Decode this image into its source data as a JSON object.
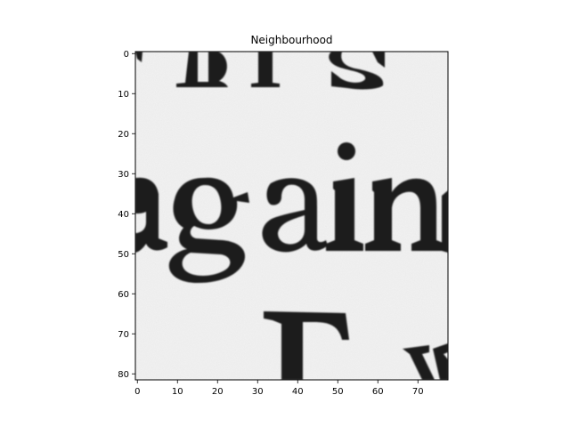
{
  "chart_data": {
    "type": "heatmap",
    "title": "Neighbourhood",
    "xlabel": "",
    "ylabel": "",
    "content": "grayscale scanned-text crop",
    "xlim": [
      -0.5,
      77.5
    ],
    "ylim": [
      81.5,
      -0.5
    ],
    "x_ticks": [
      0,
      10,
      20,
      30,
      40,
      50,
      60,
      70
    ],
    "y_ticks": [
      0,
      10,
      20,
      30,
      40,
      50,
      60,
      70,
      80
    ],
    "colormap": "gray",
    "grid": false,
    "colors": {
      "ink": "#1c1c1c",
      "paper": "#f1f1f1",
      "frame": "#000000"
    }
  }
}
